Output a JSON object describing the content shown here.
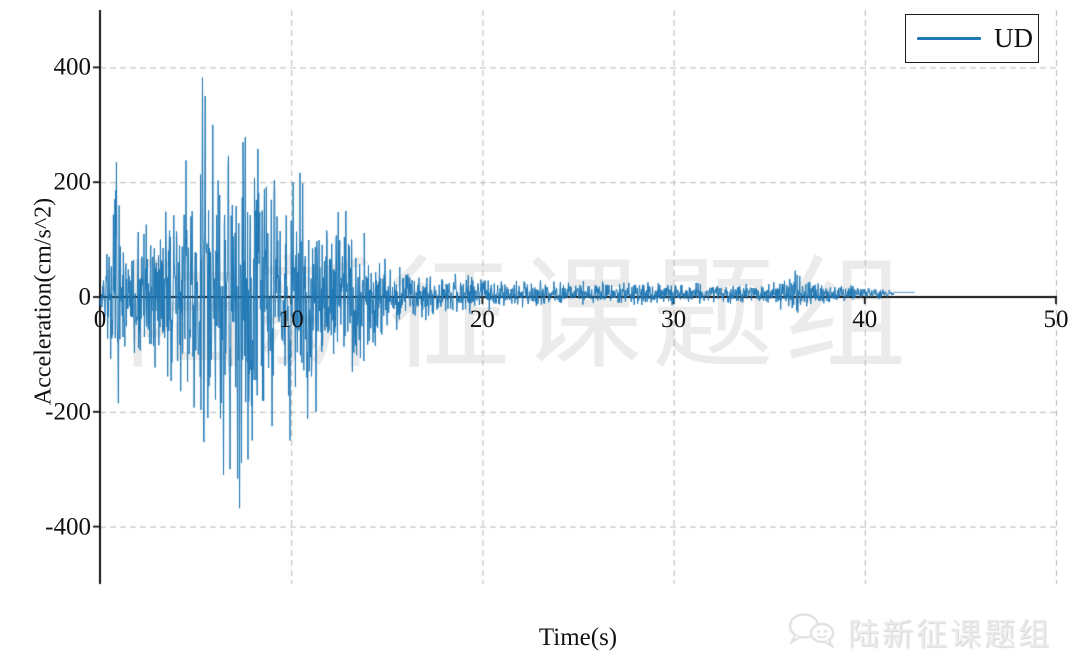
{
  "page": {
    "background": "#ffffff"
  },
  "watermark": {
    "center_text": "陆新征课题组",
    "footer_text": "陆新征课题组",
    "footer_icon": "wechat-logo-icon",
    "center_color": "rgba(0,0,0,0.08)",
    "footer_color": "#ececec"
  },
  "chart_data": {
    "type": "line",
    "title": "",
    "xlabel": "Time(s)",
    "ylabel": "Acceleration(cm/s^2)",
    "xlim": [
      0,
      50
    ],
    "ylim": [
      -500,
      500
    ],
    "xticks": [
      0,
      10,
      20,
      30,
      40,
      50
    ],
    "xtick_labels": [
      "0",
      "10",
      "20",
      "30",
      "40",
      "50"
    ],
    "yticks": [
      400,
      200,
      0,
      -200,
      -400
    ],
    "ytick_labels": [
      "400",
      "200",
      "0",
      "-200",
      "-400"
    ],
    "grid": {
      "style": "dashed",
      "color": "#b8b8b8",
      "dash": [
        6,
        4
      ]
    },
    "axis_color": "#111111",
    "legend": {
      "label": "UD",
      "position": "upper-right",
      "line_color": "#1f77b4"
    },
    "series": [
      {
        "name": "UD",
        "color": "#1f77b4",
        "line_width": 1,
        "signal": {
          "description": "earthquake ground acceleration time history, UD (vertical) component; dense oscillatory record decaying after ~14 s, ends ~42.5 s",
          "dt": 0.02,
          "duration": 42.6,
          "peak_acceleration": 382,
          "min_acceleration": -368,
          "coda_offset": 6,
          "flat_tail": {
            "start": 41.5,
            "value": 8
          },
          "noise_seed": 12,
          "envelope": [
            [
              0,
              15
            ],
            [
              0.3,
              80
            ],
            [
              0.6,
              190
            ],
            [
              0.85,
              235
            ],
            [
              1.1,
              130
            ],
            [
              1.6,
              115
            ],
            [
              2.2,
              145
            ],
            [
              3.0,
              145
            ],
            [
              3.6,
              165
            ],
            [
              4.2,
              185
            ],
            [
              4.5,
              240
            ],
            [
              4.9,
              205
            ],
            [
              5.35,
              382
            ],
            [
              5.7,
              340
            ],
            [
              6.1,
              290
            ],
            [
              6.5,
              315
            ],
            [
              6.9,
              280
            ],
            [
              7.3,
              370
            ],
            [
              7.8,
              300
            ],
            [
              8.3,
              260
            ],
            [
              8.8,
              235
            ],
            [
              9.3,
              210
            ],
            [
              9.7,
              190
            ],
            [
              10.0,
              240
            ],
            [
              10.4,
              250
            ],
            [
              10.8,
              210
            ],
            [
              11.3,
              175
            ],
            [
              11.9,
              155
            ],
            [
              12.4,
              150
            ],
            [
              12.9,
              150
            ],
            [
              13.4,
              140
            ],
            [
              14.0,
              120
            ],
            [
              14.6,
              100
            ],
            [
              15.2,
              75
            ],
            [
              16.0,
              55
            ],
            [
              17.0,
              45
            ],
            [
              18.0,
              40
            ],
            [
              19.5,
              36
            ],
            [
              21.0,
              30
            ],
            [
              23.0,
              26
            ],
            [
              25.0,
              24
            ],
            [
              27.0,
              24
            ],
            [
              29.0,
              24
            ],
            [
              31.0,
              20
            ],
            [
              33.0,
              19
            ],
            [
              35.0,
              20
            ],
            [
              36.1,
              38
            ],
            [
              36.35,
              48
            ],
            [
              36.8,
              32
            ],
            [
              37.5,
              22
            ],
            [
              38.5,
              17
            ],
            [
              39.5,
              14
            ],
            [
              40.3,
              14
            ],
            [
              41.0,
              10
            ],
            [
              41.5,
              7
            ],
            [
              42.2,
              5
            ],
            [
              42.6,
              4
            ]
          ],
          "key_peaks": [
            [
              0.85,
              235
            ],
            [
              0.95,
              -185
            ],
            [
              4.5,
              238
            ],
            [
              5.35,
              382
            ],
            [
              5.5,
              350
            ],
            [
              5.9,
              300
            ],
            [
              6.45,
              -310
            ],
            [
              6.8,
              -300
            ],
            [
              7.3,
              -368
            ],
            [
              7.95,
              -250
            ],
            [
              8.25,
              258
            ],
            [
              9.0,
              -225
            ],
            [
              9.95,
              -250
            ],
            [
              10.1,
              200
            ],
            [
              10.6,
              198
            ],
            [
              10.85,
              -212
            ],
            [
              11.3,
              -200
            ],
            [
              12.45,
              148
            ],
            [
              12.85,
              150
            ],
            [
              36.35,
              46
            ]
          ]
        }
      }
    ]
  }
}
